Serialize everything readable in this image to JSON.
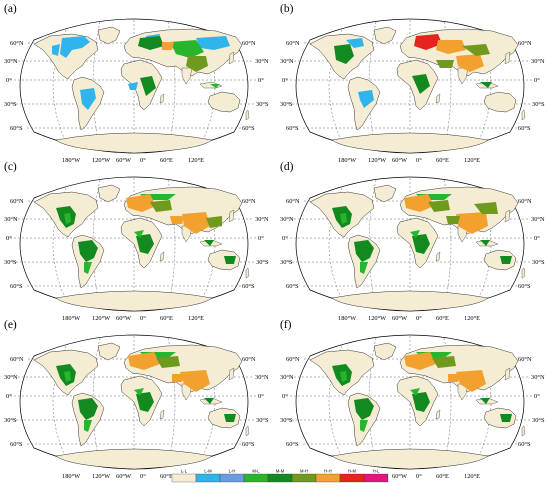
{
  "figure": {
    "panels": [
      {
        "label": "(a)"
      },
      {
        "label": "(b)"
      },
      {
        "label": "(c)"
      },
      {
        "label": "(d)"
      },
      {
        "label": "(e)"
      },
      {
        "label": "(f)"
      }
    ],
    "latitude_labels_left": [
      "60°N",
      "30°N",
      "0°",
      "30°S",
      "60°S"
    ],
    "latitude_labels_right": [
      "60°N",
      "30°N",
      "0°",
      "30°S",
      "60°S"
    ],
    "longitude_labels": [
      "180°W",
      "120°W",
      "60°W",
      "0°",
      "60°E",
      "120°E"
    ],
    "legend": [
      {
        "label": "L-L",
        "color": "#f4ecd3"
      },
      {
        "label": "L-M",
        "color": "#2fb4ec"
      },
      {
        "label": "L-H",
        "color": "#6a9bdc"
      },
      {
        "label": "M-L",
        "color": "#27b52d"
      },
      {
        "label": "M-M",
        "color": "#138a20"
      },
      {
        "label": "M-H",
        "color": "#6f9a1e"
      },
      {
        "label": "H-H",
        "color": "#f2a12e"
      },
      {
        "label": "H-M",
        "color": "#e6231c"
      },
      {
        "label": "H-L",
        "color": "#e0157e"
      }
    ]
  }
}
